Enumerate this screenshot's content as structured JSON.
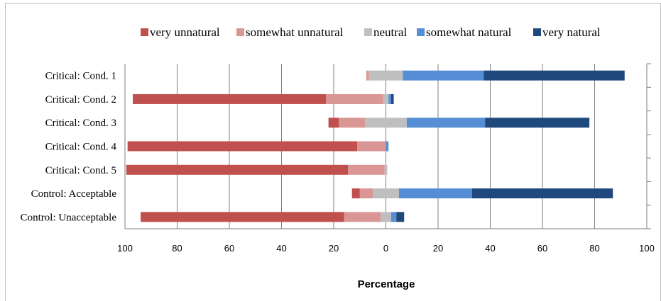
{
  "chart_data": {
    "type": "bar",
    "orientation": "horizontal",
    "stacked": "diverging",
    "xlabel": "Percentage",
    "xlim": [
      -100,
      100
    ],
    "tick_values": [
      -100,
      -80,
      -60,
      -40,
      -20,
      0,
      20,
      40,
      60,
      80,
      100
    ],
    "tick_labels": [
      "100",
      "80",
      "60",
      "40",
      "20",
      "0",
      "20",
      "40",
      "60",
      "80",
      "100"
    ],
    "grid": true,
    "legend_position": "top",
    "categories": [
      "Critical: Cond. 1",
      "Critical: Cond. 2",
      "Critical: Cond. 3",
      "Critical: Cond. 4",
      "Critical: Cond. 5",
      "Control: Acceptable",
      "Control: Unacceptable"
    ],
    "series": [
      {
        "name": "very unnatural",
        "side": "negative",
        "color": "#c0504d",
        "values": [
          0,
          74,
          4,
          88,
          85,
          3,
          78
        ]
      },
      {
        "name": "somewhat unnatural",
        "side": "negative",
        "color": "#d99694",
        "values": [
          1,
          22,
          10,
          11,
          14,
          5,
          14
        ]
      },
      {
        "name": "neutral",
        "side": "split",
        "color": "#bfbfbf",
        "values": [
          13,
          2,
          16,
          0,
          1,
          10,
          4
        ]
      },
      {
        "name": "somewhat natural",
        "side": "positive",
        "color": "#558ed5",
        "values": [
          31,
          1,
          30,
          1,
          0,
          28,
          2
        ]
      },
      {
        "name": "very natural",
        "side": "positive",
        "color": "#1f497d",
        "values": [
          54,
          1,
          40,
          0,
          0,
          54,
          3
        ]
      }
    ]
  }
}
